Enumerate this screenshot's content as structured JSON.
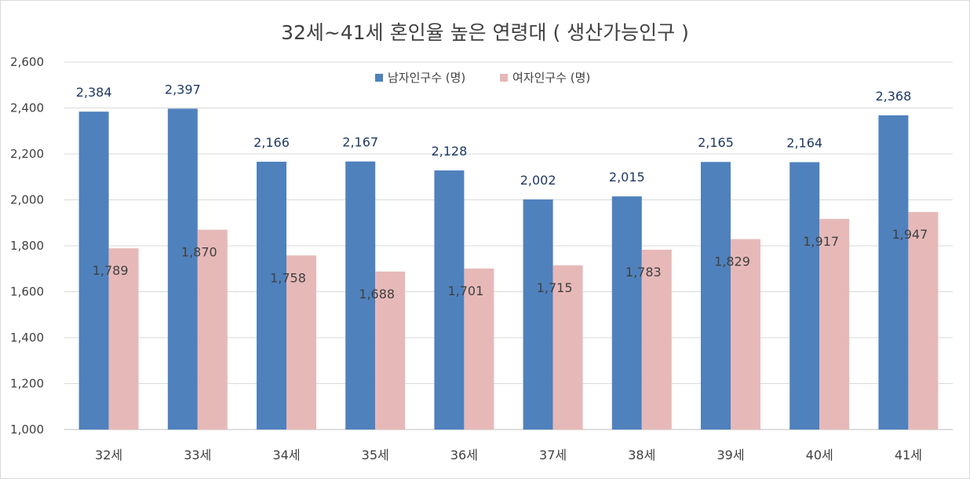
{
  "chart_data": {
    "type": "bar",
    "title": "32세~41세 혼인율 높은 연령대 ( 생산가능인구 )",
    "categories": [
      "32세",
      "33세",
      "34세",
      "35세",
      "36세",
      "37세",
      "38세",
      "39세",
      "40세",
      "41세"
    ],
    "series": [
      {
        "name": "남자인구수 (명)",
        "color": "#4f81bd",
        "values": [
          2384,
          2397,
          2166,
          2167,
          2128,
          2002,
          2015,
          2165,
          2164,
          2368
        ]
      },
      {
        "name": "여자인구수 (명)",
        "color": "#e6b9b8",
        "values": [
          1789,
          1870,
          1758,
          1688,
          1701,
          1715,
          1783,
          1829,
          1917,
          1947
        ]
      }
    ],
    "ylim": [
      1000,
      2600
    ],
    "yticks": [
      "1,000",
      "1,200",
      "1,400",
      "1,600",
      "1,800",
      "2,000",
      "2,200",
      "2,400",
      "2,600"
    ],
    "grid": true,
    "legend": "top-center",
    "data_labels": true
  }
}
